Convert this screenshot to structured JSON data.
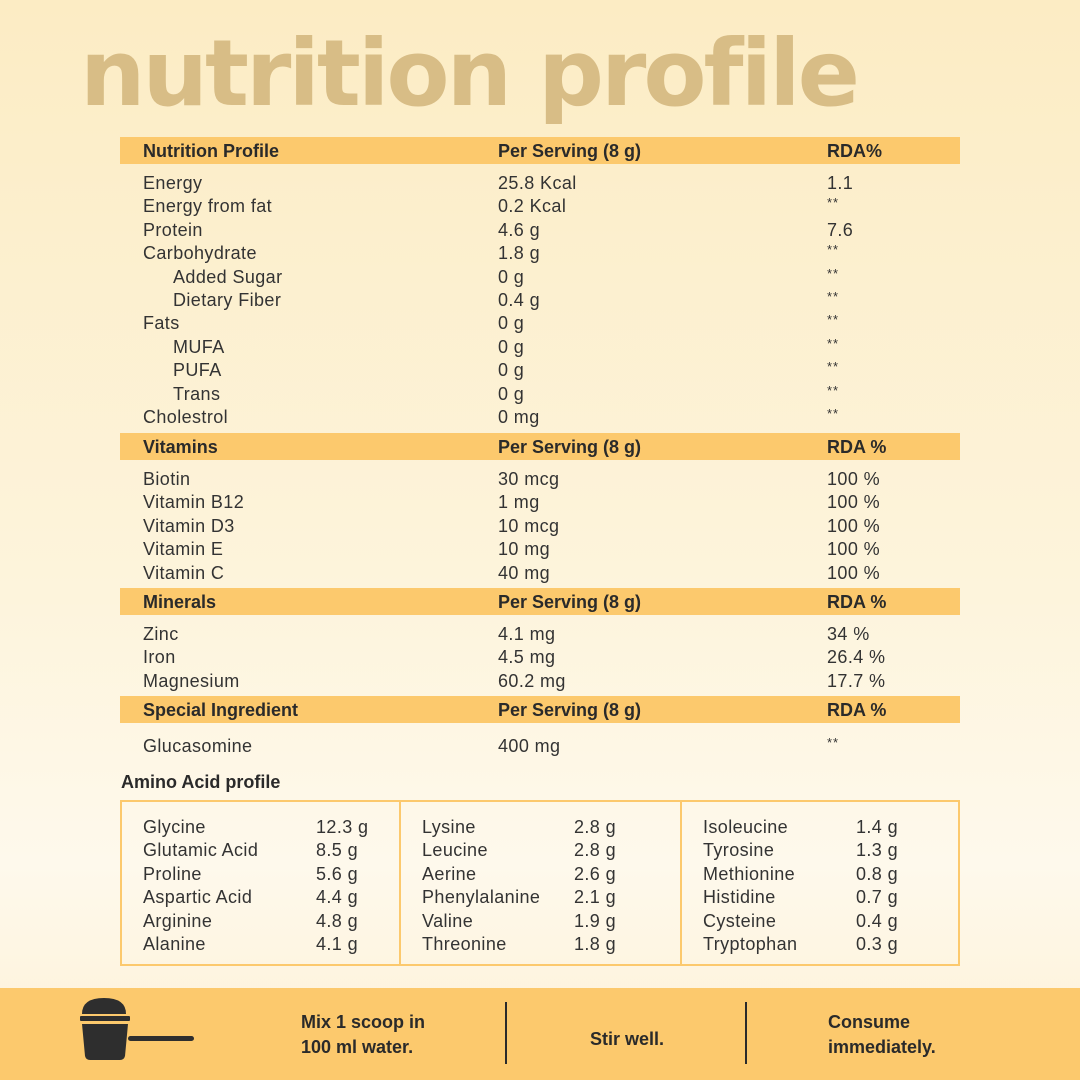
{
  "page_title": "nutrition profile",
  "nutrition": {
    "header": [
      "Nutrition Profile",
      "Per Serving (8 g)",
      "RDA%"
    ],
    "rows": [
      {
        "name": "Energy",
        "value": "25.8 Kcal",
        "rda": "1.1",
        "indent": false
      },
      {
        "name": "Energy from fat",
        "value": "0.2 Kcal",
        "rda": "**",
        "indent": false
      },
      {
        "name": "Protein",
        "value": "4.6 g",
        "rda": "7.6",
        "indent": false
      },
      {
        "name": "Carbohydrate",
        "value": "1.8 g",
        "rda": "**",
        "indent": false
      },
      {
        "name": "Added Sugar",
        "value": "0 g",
        "rda": "**",
        "indent": true
      },
      {
        "name": "Dietary Fiber",
        "value": "0.4 g",
        "rda": "**",
        "indent": true
      },
      {
        "name": "Fats",
        "value": "0 g",
        "rda": "**",
        "indent": false
      },
      {
        "name": "MUFA",
        "value": "0 g",
        "rda": "**",
        "indent": true
      },
      {
        "name": "PUFA",
        "value": "0 g",
        "rda": "**",
        "indent": true
      },
      {
        "name": "Trans",
        "value": "0 g",
        "rda": "**",
        "indent": true
      },
      {
        "name": "Cholestrol",
        "value": "0 mg",
        "rda": "**",
        "indent": false
      }
    ]
  },
  "vitamins": {
    "header": [
      "Vitamins",
      "Per Serving (8 g)",
      "RDA %"
    ],
    "rows": [
      {
        "name": "Biotin",
        "value": "30 mcg",
        "rda": "100 %"
      },
      {
        "name": "Vitamin B12",
        "value": "1 mg",
        "rda": "100 %"
      },
      {
        "name": "Vitamin D3",
        "value": "10 mcg",
        "rda": "100 %"
      },
      {
        "name": "Vitamin E",
        "value": "10 mg",
        "rda": "100 %"
      },
      {
        "name": "Vitamin C",
        "value": "40 mg",
        "rda": "100 %"
      }
    ]
  },
  "minerals": {
    "header": [
      "Minerals",
      "Per Serving (8 g)",
      "RDA %"
    ],
    "rows": [
      {
        "name": "Zinc",
        "value": "4.1 mg",
        "rda": "34 %"
      },
      {
        "name": "Iron",
        "value": "4.5 mg",
        "rda": "26.4 %"
      },
      {
        "name": "Magnesium",
        "value": "60.2 mg",
        "rda": "17.7 %"
      }
    ]
  },
  "special": {
    "header": [
      "Special Ingredient",
      "Per Serving (8 g)",
      "RDA %"
    ],
    "rows": [
      {
        "name": "Glucasomine",
        "value": "400 mg",
        "rda": "**"
      }
    ]
  },
  "amino": {
    "title": "Amino Acid profile",
    "columns": [
      [
        {
          "name": "Glycine",
          "value": "12.3 g"
        },
        {
          "name": "Glutamic Acid",
          "value": "8.5 g"
        },
        {
          "name": "Proline",
          "value": "5.6 g"
        },
        {
          "name": "Aspartic Acid",
          "value": "4.4 g"
        },
        {
          "name": "Arginine",
          "value": "4.8 g"
        },
        {
          "name": "Alanine",
          "value": "4.1 g"
        }
      ],
      [
        {
          "name": "Lysine",
          "value": "2.8 g"
        },
        {
          "name": "Leucine",
          "value": "2.8 g"
        },
        {
          "name": "Aerine",
          "value": "2.6 g"
        },
        {
          "name": "Phenylalanine",
          "value": "2.1 g"
        },
        {
          "name": "Valine",
          "value": "1.9 g"
        },
        {
          "name": "Threonine",
          "value": "1.8 g"
        }
      ],
      [
        {
          "name": "Isoleucine",
          "value": "1.4 g"
        },
        {
          "name": "Tyrosine",
          "value": "1.3 g"
        },
        {
          "name": "Methionine",
          "value": "0.8 g"
        },
        {
          "name": "Histidine",
          "value": "0.7 g"
        },
        {
          "name": "Cysteine",
          "value": "0.4 g"
        },
        {
          "name": "Tryptophan",
          "value": "0.3 g"
        }
      ]
    ]
  },
  "footer": {
    "icon": "scoop-icon",
    "step1_line1": "Mix 1 scoop in",
    "step1_line2": "100 ml water.",
    "step2": "Stir well.",
    "step3_line1": "Consume",
    "step3_line2": "immediately."
  },
  "colors": {
    "accent": "#fcc96d",
    "title": "#d8bd86",
    "text": "#2e2e2e"
  }
}
